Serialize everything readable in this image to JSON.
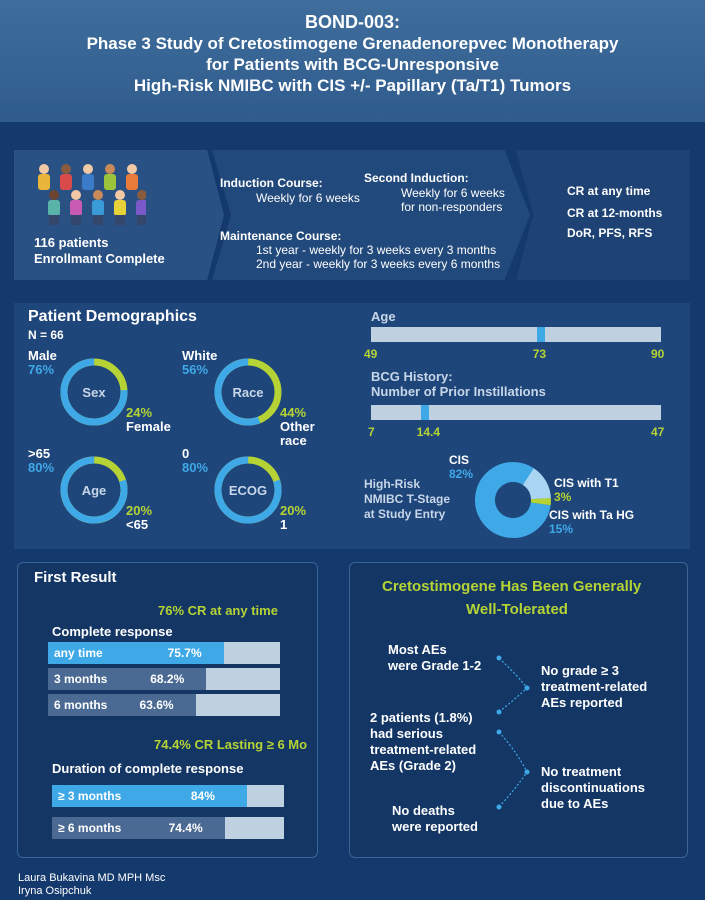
{
  "header": {
    "line1": "BOND-003:",
    "line2": "Phase 3 Study of Cretostimogene Grenadenorepvec Monotherapy",
    "line3": "for Patients with BCG-Unresponsive",
    "line4": "High-Risk NMIBC with CIS +/- Papillary (Ta/T1) Tumors"
  },
  "enrollment": {
    "patients": "116 patients",
    "status": "Enrollmant Complete"
  },
  "regimen": {
    "induction_title": "Induction Course:",
    "induction_detail": "Weekly for 6 weeks",
    "second_title": "Second Induction:",
    "second_detail1": "Weekly for 6 weeks",
    "second_detail2": "for non-responders",
    "maint_title": "Maintenance Course:",
    "maint_detail1": "1st year - weekly for 3 weeks every 3 months",
    "maint_detail2": "2nd year - weekly for 3 weeks every 6 months"
  },
  "endpoints": [
    "CR at any time",
    "CR at 12-months",
    "DoR, PFS, RFS"
  ],
  "demographics": {
    "title": "Patient Demographics",
    "n": "N = 66",
    "donuts": [
      {
        "name": "Sex",
        "top_label": "Male",
        "top_value": "76%",
        "bottom_value": "24%",
        "bottom_label": "Female",
        "fraction": 0.76
      },
      {
        "name": "Race",
        "top_label": "White",
        "top_value": "56%",
        "bottom_value": "44%",
        "bottom_label": "Other race",
        "fraction": 0.56
      },
      {
        "name": "Age",
        "top_label": ">65",
        "top_value": "80%",
        "bottom_value": "20%",
        "bottom_label": "<65",
        "fraction": 0.8
      },
      {
        "name": "ECOG",
        "top_label": "0",
        "top_value": "80%",
        "bottom_value": "20%",
        "bottom_label": "1",
        "fraction": 0.8
      }
    ],
    "age_bar": {
      "title": "Age",
      "min": 49,
      "median": 73,
      "max": 90
    },
    "bcg_bar": {
      "title1": "BCG History:",
      "title2": "Number of Prior  Instillations",
      "min": 7,
      "median": 14.4,
      "max": 47
    },
    "tstage": {
      "title1": "High-Risk",
      "title2": "NMIBC T-Stage",
      "title3": "at Study Entry",
      "slices": [
        {
          "label": "CIS",
          "value": "82%",
          "fraction": 0.82,
          "color": "#3fa9e8"
        },
        {
          "label": "CIS with Ta HG",
          "value": "15%",
          "fraction": 0.15,
          "color": "#a9d4f2"
        },
        {
          "label": "CIS with T1",
          "value": "3%",
          "fraction": 0.03,
          "color": "#b5d334"
        }
      ]
    }
  },
  "first_result": {
    "title": "First Result",
    "cr_headline": "76% CR at any time",
    "cr_section": "Complete response",
    "cr_rows": [
      {
        "label": "any time",
        "value": "75.7%",
        "fraction": 0.757
      },
      {
        "label": "3 months",
        "value": "68.2%",
        "fraction": 0.682
      },
      {
        "label": "6 months",
        "value": "63.6%",
        "fraction": 0.636
      }
    ],
    "dur_headline": "74.4% CR Lasting ≥ 6 Mo",
    "dur_section": "Duration of complete response",
    "dur_rows": [
      {
        "label": "≥ 3 months",
        "value": "84%",
        "fraction": 0.84
      },
      {
        "label": "≥ 6 months",
        "value": "74.4%",
        "fraction": 0.744
      }
    ]
  },
  "tolerability": {
    "title1": "Cretostimogene Has Been Generally",
    "title2": "Well-Tolerated",
    "left_items": [
      [
        "Most AEs",
        "were Grade 1-2"
      ],
      [
        "2 patients (1.8%)",
        "had serious",
        "treatment-related",
        "AEs (Grade 2)"
      ],
      [
        "No deaths",
        "were reported"
      ]
    ],
    "right_items": [
      [
        "No grade ≥ 3",
        "treatment-related",
        "AEs reported"
      ],
      [
        "No treatment",
        "discontinuations",
        "due to AEs"
      ]
    ]
  },
  "authors": [
    "Laura Bukavina MD MPH Msc",
    "Iryna Osipchuk"
  ],
  "colors": {
    "blue": "#3fa9e8",
    "green": "#b5d334",
    "light_track": "#bfd0e0",
    "background": "#143a6d"
  }
}
